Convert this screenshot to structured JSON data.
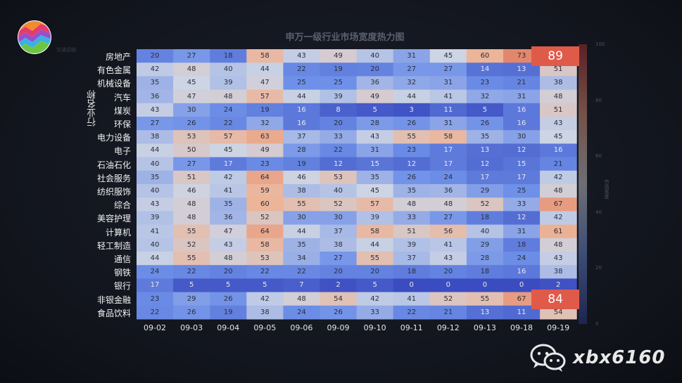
{
  "chart_data": {
    "type": "heatmap",
    "title": "申万一级行业市场宽度热力图",
    "ylabel": "行业名称",
    "colorbar_label": "市场宽度",
    "colorbar_ticks": [
      "100",
      "80",
      "60",
      "40",
      "20",
      "0"
    ],
    "vmin": 0,
    "vmax": 100,
    "x": [
      "09-02",
      "09-03",
      "09-04",
      "09-05",
      "09-06",
      "09-09",
      "09-10",
      "09-11",
      "09-12",
      "09-13",
      "09-18",
      "09-19"
    ],
    "y": [
      "房地产",
      "有色金属",
      "机械设备",
      "汽车",
      "煤炭",
      "环保",
      "电力设备",
      "电子",
      "石油石化",
      "社会服务",
      "纺织服饰",
      "综合",
      "美容护理",
      "计算机",
      "轻工制造",
      "通信",
      "钢铁",
      "银行",
      "非银金融",
      "食品饮料"
    ],
    "values": [
      [
        20,
        27,
        18,
        58,
        43,
        49,
        40,
        31,
        45,
        60,
        73,
        89
      ],
      [
        42,
        48,
        40,
        44,
        22,
        19,
        20,
        27,
        27,
        14,
        13,
        51
      ],
      [
        35,
        45,
        39,
        47,
        25,
        25,
        36,
        32,
        31,
        23,
        21,
        38
      ],
      [
        36,
        47,
        48,
        57,
        44,
        39,
        49,
        44,
        41,
        32,
        31,
        48
      ],
      [
        43,
        30,
        24,
        19,
        16,
        8,
        5,
        3,
        11,
        5,
        16,
        51
      ],
      [
        27,
        26,
        22,
        32,
        16,
        20,
        28,
        26,
        31,
        26,
        16,
        43
      ],
      [
        38,
        53,
        57,
        63,
        37,
        33,
        43,
        55,
        58,
        35,
        30,
        45
      ],
      [
        44,
        50,
        45,
        49,
        28,
        22,
        31,
        23,
        17,
        13,
        12,
        16
      ],
      [
        40,
        27,
        17,
        23,
        19,
        12,
        15,
        12,
        17,
        12,
        15,
        21
      ],
      [
        35,
        51,
        42,
        64,
        46,
        53,
        35,
        26,
        24,
        17,
        17,
        42
      ],
      [
        40,
        46,
        41,
        59,
        38,
        40,
        45,
        35,
        36,
        29,
        25,
        48
      ],
      [
        43,
        48,
        35,
        60,
        55,
        52,
        57,
        48,
        48,
        52,
        33,
        67
      ],
      [
        39,
        48,
        36,
        52,
        30,
        30,
        39,
        33,
        27,
        18,
        12,
        42
      ],
      [
        41,
        55,
        47,
        64,
        44,
        37,
        58,
        51,
        56,
        40,
        31,
        61
      ],
      [
        40,
        52,
        43,
        58,
        35,
        38,
        44,
        39,
        41,
        29,
        18,
        48
      ],
      [
        44,
        55,
        48,
        53,
        34,
        27,
        55,
        37,
        43,
        28,
        24,
        43
      ],
      [
        24,
        22,
        20,
        22,
        22,
        20,
        20,
        18,
        20,
        18,
        16,
        38
      ],
      [
        17,
        5,
        5,
        5,
        7,
        2,
        5,
        0,
        0,
        0,
        0,
        2
      ],
      [
        23,
        29,
        26,
        42,
        48,
        54,
        42,
        41,
        52,
        55,
        67,
        84
      ],
      [
        22,
        26,
        19,
        38,
        24,
        26,
        33,
        22,
        21,
        13,
        11,
        54
      ]
    ],
    "callouts": [
      {
        "row": 0,
        "col": 11,
        "value": "89"
      },
      {
        "row": 18,
        "col": 11,
        "value": "84"
      }
    ]
  },
  "watermark": "xbx6160",
  "colors": {
    "low": "#2d3a8a",
    "mid": "#d8d8d8",
    "high": "#b52e2e",
    "badge": "#e05a4a"
  }
}
